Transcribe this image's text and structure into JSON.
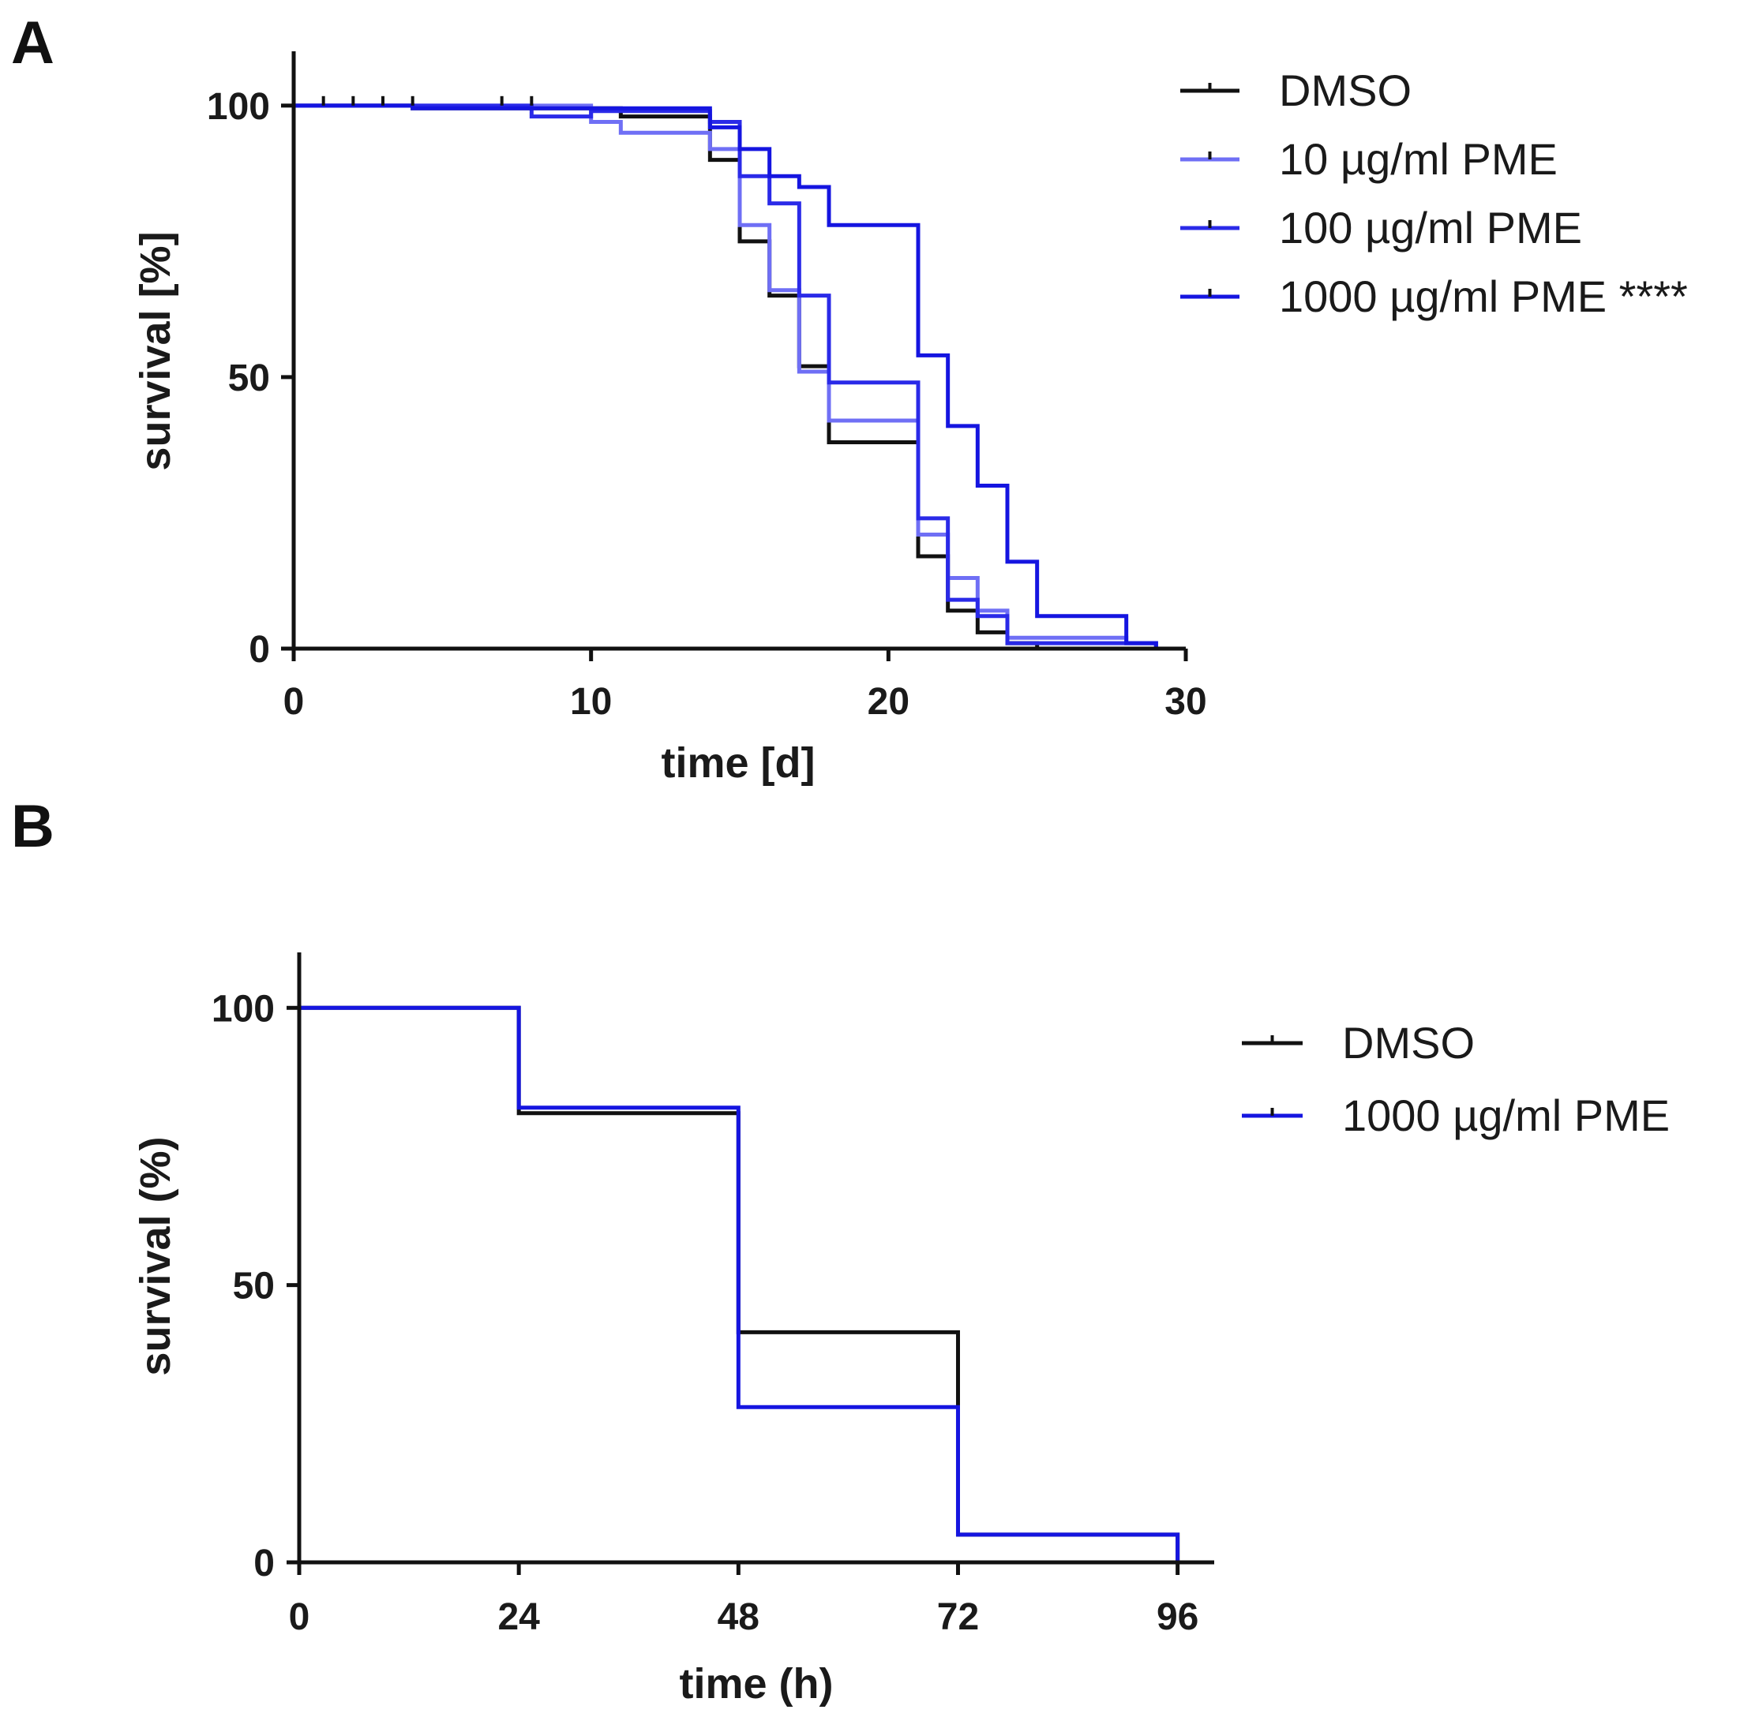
{
  "panels": [
    {
      "letter": "A",
      "chart_data": {
        "type": "line",
        "subtype": "kaplan-meier step",
        "xlabel": "time [d]",
        "ylabel": "survival [%]",
        "xlim": [
          0,
          30
        ],
        "ylim": [
          0,
          110
        ],
        "xticks": [
          0,
          10,
          20,
          30
        ],
        "yticks": [
          0,
          50,
          100
        ],
        "grid": false,
        "legend_position": "top-right",
        "series": [
          {
            "name": "DMSO",
            "color": "#111111",
            "x": [
              0,
              4,
              11,
              14,
              15,
              16,
              17,
              18,
              21,
              21.5,
              22,
              23,
              24,
              25
            ],
            "y": [
              100,
              99.5,
              98,
              90,
              75,
              65,
              52,
              38,
              17,
              17,
              7,
              3,
              1,
              0
            ]
          },
          {
            "name": "10 µg/ml PME",
            "color": "#6f6ff5",
            "x": [
              0,
              4,
              10,
              11,
              14,
              15,
              16,
              17,
              18,
              21,
              22,
              23,
              24,
              28,
              29
            ],
            "y": [
              100,
              100,
              97,
              95,
              92,
              78,
              66,
              51,
              42,
              21,
              13,
              7,
              2,
              1,
              0
            ]
          },
          {
            "name": "100 µg/ml PME",
            "color": "#2a2ae8",
            "x": [
              0,
              8,
              10,
              14,
              15,
              16,
              17,
              18,
              21,
              22,
              23,
              24,
              29
            ],
            "y": [
              100,
              98,
              99,
              97,
              87,
              82,
              65,
              49,
              24,
              9,
              6,
              1,
              0
            ]
          },
          {
            "name": "1000 µg/ml PME ****",
            "color": "#1515e0",
            "x": [
              0,
              4,
              14,
              15,
              16,
              17,
              18,
              21,
              22,
              23,
              24,
              25,
              28,
              29
            ],
            "y": [
              100,
              99.5,
              96,
              92,
              87,
              85,
              78,
              54,
              41,
              30,
              16,
              6,
              1,
              0
            ]
          }
        ]
      }
    },
    {
      "letter": "B",
      "chart_data": {
        "type": "line",
        "subtype": "kaplan-meier step",
        "xlabel": "time (h)",
        "ylabel": "survival (%)",
        "xlim": [
          0,
          100
        ],
        "ylim": [
          0,
          110
        ],
        "xticks": [
          0,
          24,
          48,
          72,
          96
        ],
        "yticks": [
          0,
          50,
          100
        ],
        "grid": false,
        "legend_position": "right",
        "series": [
          {
            "name": "DMSO",
            "color": "#111111",
            "x": [
              0,
              24,
              48,
              72,
              96
            ],
            "y": [
              100,
              81,
              41.5,
              5,
              0
            ]
          },
          {
            "name": "1000 µg/ml PME",
            "color": "#1515e0",
            "x": [
              0,
              24,
              48,
              72,
              96
            ],
            "y": [
              100,
              82,
              28,
              5,
              0
            ]
          }
        ]
      }
    }
  ]
}
